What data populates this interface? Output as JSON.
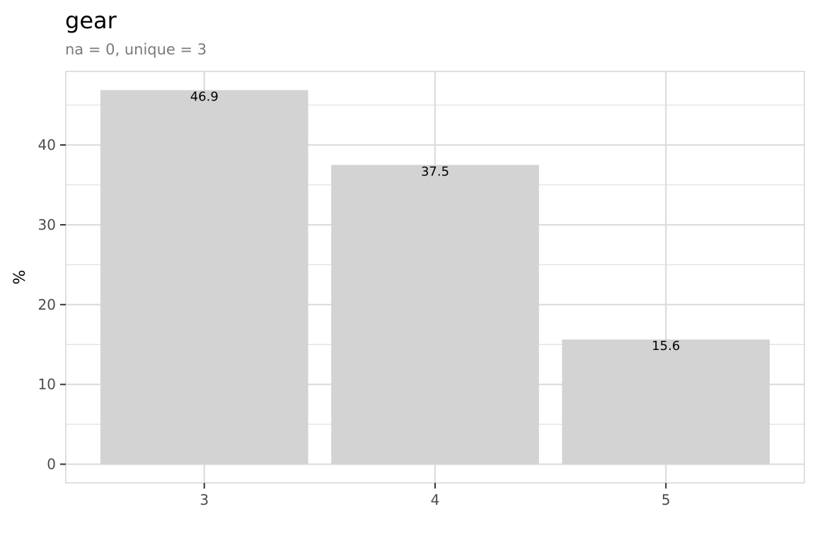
{
  "chart_data": {
    "type": "bar",
    "title": "gear",
    "subtitle": "na = 0, unique = 3",
    "xlabel": "",
    "ylabel": "%",
    "categories": [
      "3",
      "4",
      "5"
    ],
    "values": [
      46.875,
      37.5,
      15.625
    ],
    "data_labels": [
      "46.9",
      "37.5",
      "15.6"
    ],
    "ylim": [
      -2.34375,
      49.21875
    ],
    "y_ticks": [
      0,
      10,
      20,
      30,
      40
    ],
    "y_tick_labels": [
      "0",
      "10",
      "20",
      "30",
      "40"
    ],
    "grid": true,
    "legend": "none",
    "bar_color": "#d3d3d3",
    "grid_color": "#dcdcdc",
    "panel_border_color": "#d6d6d6"
  }
}
